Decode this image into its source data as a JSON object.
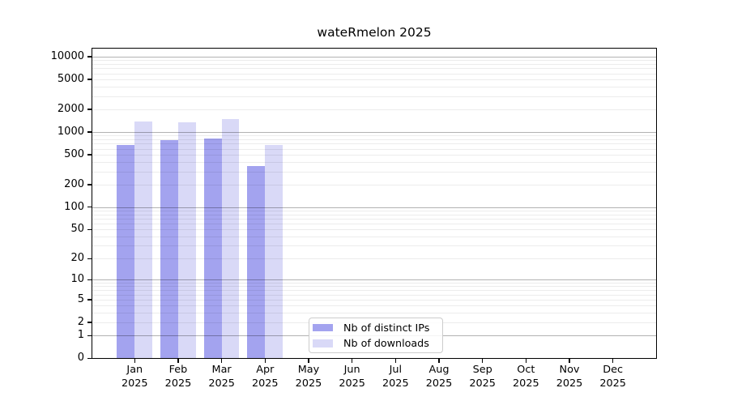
{
  "chart_data": {
    "type": "bar",
    "title": "wateRmelon 2025",
    "categories": [
      "Jan",
      "Feb",
      "Mar",
      "Apr",
      "May",
      "Jun",
      "Jul",
      "Aug",
      "Sep",
      "Oct",
      "Nov",
      "Dec"
    ],
    "year": "2025",
    "series": [
      {
        "name": "Nb of distinct IPs",
        "color": "#a3a3ef",
        "values": [
          680,
          780,
          815,
          355,
          null,
          null,
          null,
          null,
          null,
          null,
          null,
          null
        ]
      },
      {
        "name": "Nb of downloads",
        "color": "#d9d9f7",
        "values": [
          1390,
          1340,
          1475,
          670,
          null,
          null,
          null,
          null,
          null,
          null,
          null,
          null
        ]
      }
    ],
    "y_ticks": [
      0,
      1,
      2,
      5,
      10,
      20,
      50,
      100,
      200,
      500,
      1000,
      2000,
      5000,
      10000
    ],
    "y_scale": "log10(value+1)",
    "ylim": [
      0,
      13000
    ],
    "grid": true,
    "legend_position": "lower-center-inside"
  }
}
